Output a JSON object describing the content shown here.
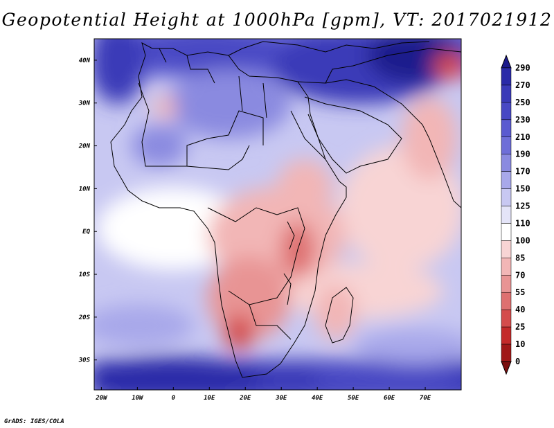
{
  "title": "Geopotential Height at 1000hPa [gpm], VT: 2017021912",
  "credit": "GrADS: IGES/COLA",
  "map": {
    "lat_labels": [
      "40N",
      "30N",
      "20N",
      "10N",
      "EQ",
      "10S",
      "20S",
      "30S"
    ],
    "lat_values": [
      40,
      30,
      20,
      10,
      0,
      -10,
      -20,
      -30
    ],
    "lon_labels": [
      "20W",
      "10W",
      "0",
      "10E",
      "20E",
      "30E",
      "40E",
      "50E",
      "60E",
      "70E"
    ],
    "lon_values": [
      -20,
      -10,
      0,
      10,
      20,
      30,
      40,
      50,
      60,
      70
    ],
    "lon_range": [
      -22,
      80
    ],
    "lat_range": [
      -37,
      45
    ]
  },
  "colorbar": {
    "levels": [
      "290",
      "270",
      "250",
      "230",
      "210",
      "190",
      "170",
      "150",
      "125",
      "110",
      "100",
      "85",
      "70",
      "55",
      "40",
      "25",
      "10",
      "0"
    ],
    "colors": [
      "#1c1a8c",
      "#2a2aa8",
      "#3a3ab8",
      "#4848c4",
      "#5a5ad0",
      "#6e6ed8",
      "#8a8ae0",
      "#a8a8ea",
      "#c8c8f2",
      "#e4e4f8",
      "#ffffff",
      "#f8d4d4",
      "#f2b6b6",
      "#e89494",
      "#de7070",
      "#d44c4c",
      "#c42a2a",
      "#a01818",
      "#7a0e0e"
    ]
  }
}
